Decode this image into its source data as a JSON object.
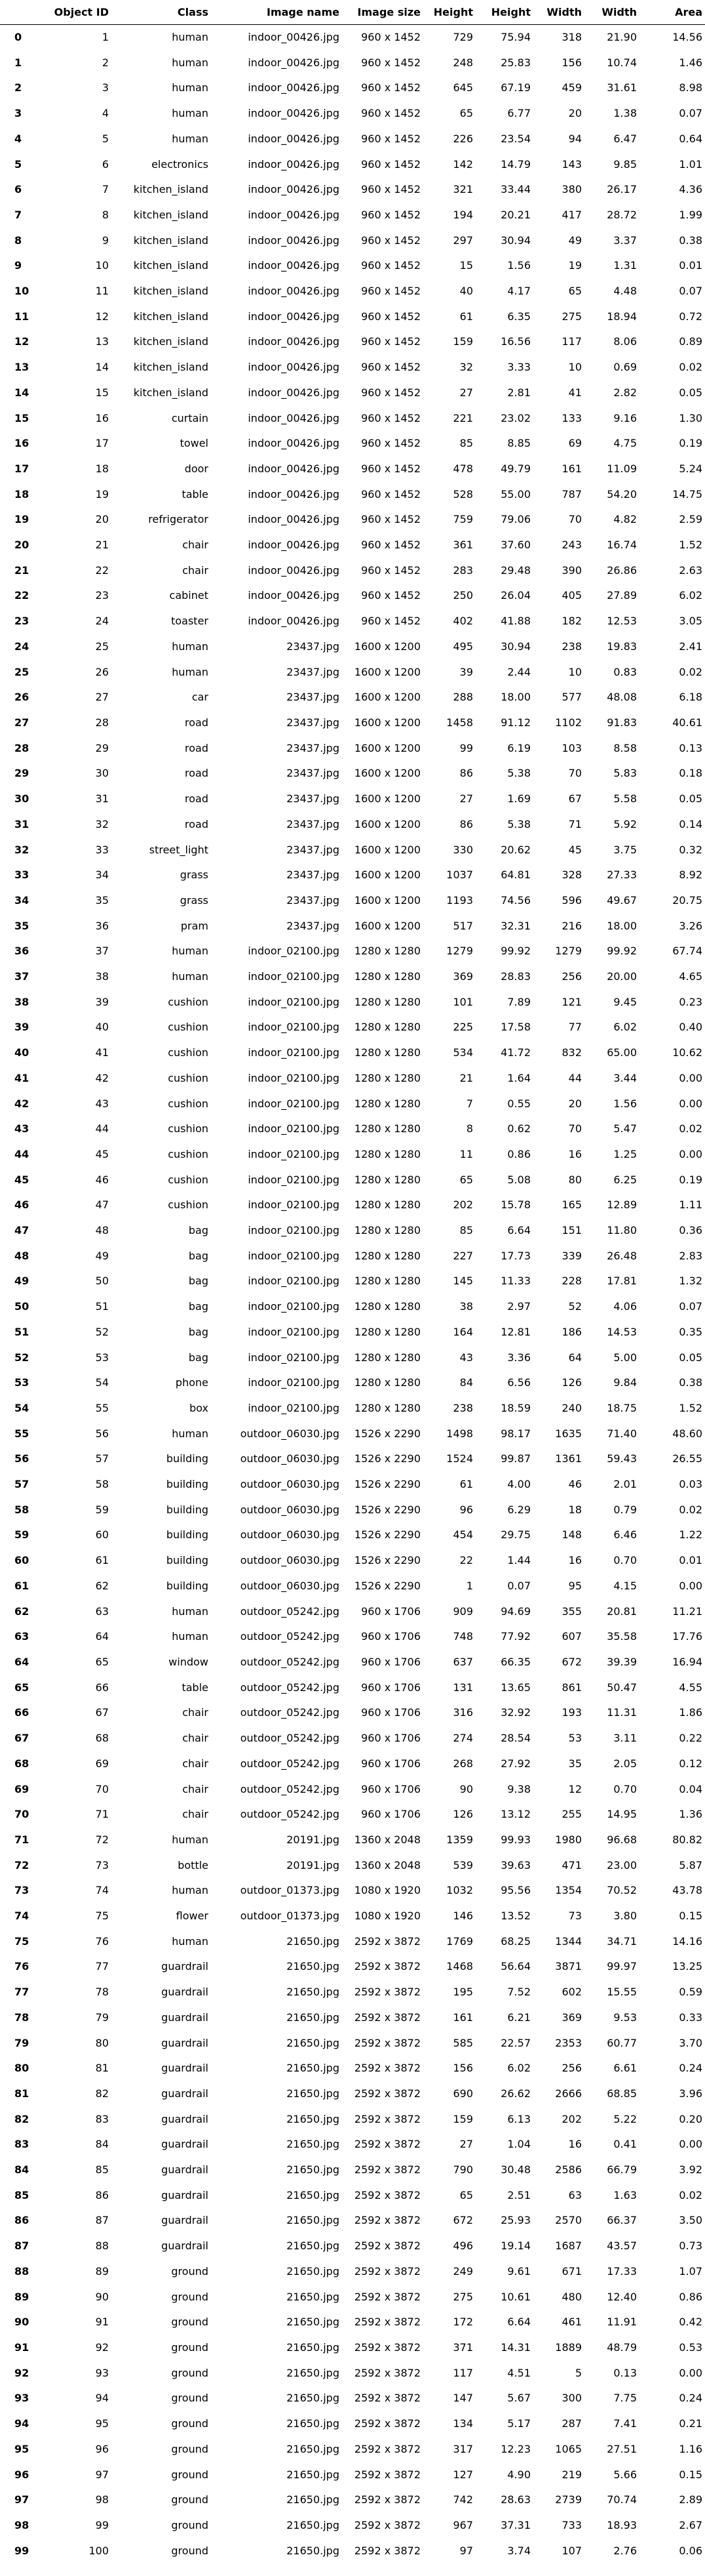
{
  "columns": [
    "",
    "Object ID",
    "Class",
    "Image name",
    "Image size",
    "Height",
    "Height",
    "Width",
    "Width",
    "Area"
  ],
  "rows": [
    [
      "0",
      "1",
      "human",
      "indoor_00426.jpg",
      "960 x 1452",
      "729",
      "75.94",
      "318",
      "21.90",
      "14.56"
    ],
    [
      "1",
      "2",
      "human",
      "indoor_00426.jpg",
      "960 x 1452",
      "248",
      "25.83",
      "156",
      "10.74",
      "1.46"
    ],
    [
      "2",
      "3",
      "human",
      "indoor_00426.jpg",
      "960 x 1452",
      "645",
      "67.19",
      "459",
      "31.61",
      "8.98"
    ],
    [
      "3",
      "4",
      "human",
      "indoor_00426.jpg",
      "960 x 1452",
      "65",
      "6.77",
      "20",
      "1.38",
      "0.07"
    ],
    [
      "4",
      "5",
      "human",
      "indoor_00426.jpg",
      "960 x 1452",
      "226",
      "23.54",
      "94",
      "6.47",
      "0.64"
    ],
    [
      "5",
      "6",
      "electronics",
      "indoor_00426.jpg",
      "960 x 1452",
      "142",
      "14.79",
      "143",
      "9.85",
      "1.01"
    ],
    [
      "6",
      "7",
      "kitchen_island",
      "indoor_00426.jpg",
      "960 x 1452",
      "321",
      "33.44",
      "380",
      "26.17",
      "4.36"
    ],
    [
      "7",
      "8",
      "kitchen_island",
      "indoor_00426.jpg",
      "960 x 1452",
      "194",
      "20.21",
      "417",
      "28.72",
      "1.99"
    ],
    [
      "8",
      "9",
      "kitchen_island",
      "indoor_00426.jpg",
      "960 x 1452",
      "297",
      "30.94",
      "49",
      "3.37",
      "0.38"
    ],
    [
      "9",
      "10",
      "kitchen_island",
      "indoor_00426.jpg",
      "960 x 1452",
      "15",
      "1.56",
      "19",
      "1.31",
      "0.01"
    ],
    [
      "10",
      "11",
      "kitchen_island",
      "indoor_00426.jpg",
      "960 x 1452",
      "40",
      "4.17",
      "65",
      "4.48",
      "0.07"
    ],
    [
      "11",
      "12",
      "kitchen_island",
      "indoor_00426.jpg",
      "960 x 1452",
      "61",
      "6.35",
      "275",
      "18.94",
      "0.72"
    ],
    [
      "12",
      "13",
      "kitchen_island",
      "indoor_00426.jpg",
      "960 x 1452",
      "159",
      "16.56",
      "117",
      "8.06",
      "0.89"
    ],
    [
      "13",
      "14",
      "kitchen_island",
      "indoor_00426.jpg",
      "960 x 1452",
      "32",
      "3.33",
      "10",
      "0.69",
      "0.02"
    ],
    [
      "14",
      "15",
      "kitchen_island",
      "indoor_00426.jpg",
      "960 x 1452",
      "27",
      "2.81",
      "41",
      "2.82",
      "0.05"
    ],
    [
      "15",
      "16",
      "curtain",
      "indoor_00426.jpg",
      "960 x 1452",
      "221",
      "23.02",
      "133",
      "9.16",
      "1.30"
    ],
    [
      "16",
      "17",
      "towel",
      "indoor_00426.jpg",
      "960 x 1452",
      "85",
      "8.85",
      "69",
      "4.75",
      "0.19"
    ],
    [
      "17",
      "18",
      "door",
      "indoor_00426.jpg",
      "960 x 1452",
      "478",
      "49.79",
      "161",
      "11.09",
      "5.24"
    ],
    [
      "18",
      "19",
      "table",
      "indoor_00426.jpg",
      "960 x 1452",
      "528",
      "55.00",
      "787",
      "54.20",
      "14.75"
    ],
    [
      "19",
      "20",
      "refrigerator",
      "indoor_00426.jpg",
      "960 x 1452",
      "759",
      "79.06",
      "70",
      "4.82",
      "2.59"
    ],
    [
      "20",
      "21",
      "chair",
      "indoor_00426.jpg",
      "960 x 1452",
      "361",
      "37.60",
      "243",
      "16.74",
      "1.52"
    ],
    [
      "21",
      "22",
      "chair",
      "indoor_00426.jpg",
      "960 x 1452",
      "283",
      "29.48",
      "390",
      "26.86",
      "2.63"
    ],
    [
      "22",
      "23",
      "cabinet",
      "indoor_00426.jpg",
      "960 x 1452",
      "250",
      "26.04",
      "405",
      "27.89",
      "6.02"
    ],
    [
      "23",
      "24",
      "toaster",
      "indoor_00426.jpg",
      "960 x 1452",
      "402",
      "41.88",
      "182",
      "12.53",
      "3.05"
    ],
    [
      "24",
      "25",
      "human",
      "23437.jpg",
      "1600 x 1200",
      "495",
      "30.94",
      "238",
      "19.83",
      "2.41"
    ],
    [
      "25",
      "26",
      "human",
      "23437.jpg",
      "1600 x 1200",
      "39",
      "2.44",
      "10",
      "0.83",
      "0.02"
    ],
    [
      "26",
      "27",
      "car",
      "23437.jpg",
      "1600 x 1200",
      "288",
      "18.00",
      "577",
      "48.08",
      "6.18"
    ],
    [
      "27",
      "28",
      "road",
      "23437.jpg",
      "1600 x 1200",
      "1458",
      "91.12",
      "1102",
      "91.83",
      "40.61"
    ],
    [
      "28",
      "29",
      "road",
      "23437.jpg",
      "1600 x 1200",
      "99",
      "6.19",
      "103",
      "8.58",
      "0.13"
    ],
    [
      "29",
      "30",
      "road",
      "23437.jpg",
      "1600 x 1200",
      "86",
      "5.38",
      "70",
      "5.83",
      "0.18"
    ],
    [
      "30",
      "31",
      "road",
      "23437.jpg",
      "1600 x 1200",
      "27",
      "1.69",
      "67",
      "5.58",
      "0.05"
    ],
    [
      "31",
      "32",
      "road",
      "23437.jpg",
      "1600 x 1200",
      "86",
      "5.38",
      "71",
      "5.92",
      "0.14"
    ],
    [
      "32",
      "33",
      "street_light",
      "23437.jpg",
      "1600 x 1200",
      "330",
      "20.62",
      "45",
      "3.75",
      "0.32"
    ],
    [
      "33",
      "34",
      "grass",
      "23437.jpg",
      "1600 x 1200",
      "1037",
      "64.81",
      "328",
      "27.33",
      "8.92"
    ],
    [
      "34",
      "35",
      "grass",
      "23437.jpg",
      "1600 x 1200",
      "1193",
      "74.56",
      "596",
      "49.67",
      "20.75"
    ],
    [
      "35",
      "36",
      "pram",
      "23437.jpg",
      "1600 x 1200",
      "517",
      "32.31",
      "216",
      "18.00",
      "3.26"
    ],
    [
      "36",
      "37",
      "human",
      "indoor_02100.jpg",
      "1280 x 1280",
      "1279",
      "99.92",
      "1279",
      "99.92",
      "67.74"
    ],
    [
      "37",
      "38",
      "human",
      "indoor_02100.jpg",
      "1280 x 1280",
      "369",
      "28.83",
      "256",
      "20.00",
      "4.65"
    ],
    [
      "38",
      "39",
      "cushion",
      "indoor_02100.jpg",
      "1280 x 1280",
      "101",
      "7.89",
      "121",
      "9.45",
      "0.23"
    ],
    [
      "39",
      "40",
      "cushion",
      "indoor_02100.jpg",
      "1280 x 1280",
      "225",
      "17.58",
      "77",
      "6.02",
      "0.40"
    ],
    [
      "40",
      "41",
      "cushion",
      "indoor_02100.jpg",
      "1280 x 1280",
      "534",
      "41.72",
      "832",
      "65.00",
      "10.62"
    ],
    [
      "41",
      "42",
      "cushion",
      "indoor_02100.jpg",
      "1280 x 1280",
      "21",
      "1.64",
      "44",
      "3.44",
      "0.00"
    ],
    [
      "42",
      "43",
      "cushion",
      "indoor_02100.jpg",
      "1280 x 1280",
      "7",
      "0.55",
      "20",
      "1.56",
      "0.00"
    ],
    [
      "43",
      "44",
      "cushion",
      "indoor_02100.jpg",
      "1280 x 1280",
      "8",
      "0.62",
      "70",
      "5.47",
      "0.02"
    ],
    [
      "44",
      "45",
      "cushion",
      "indoor_02100.jpg",
      "1280 x 1280",
      "11",
      "0.86",
      "16",
      "1.25",
      "0.00"
    ],
    [
      "45",
      "46",
      "cushion",
      "indoor_02100.jpg",
      "1280 x 1280",
      "65",
      "5.08",
      "80",
      "6.25",
      "0.19"
    ],
    [
      "46",
      "47",
      "cushion",
      "indoor_02100.jpg",
      "1280 x 1280",
      "202",
      "15.78",
      "165",
      "12.89",
      "1.11"
    ],
    [
      "47",
      "48",
      "bag",
      "indoor_02100.jpg",
      "1280 x 1280",
      "85",
      "6.64",
      "151",
      "11.80",
      "0.36"
    ],
    [
      "48",
      "49",
      "bag",
      "indoor_02100.jpg",
      "1280 x 1280",
      "227",
      "17.73",
      "339",
      "26.48",
      "2.83"
    ],
    [
      "49",
      "50",
      "bag",
      "indoor_02100.jpg",
      "1280 x 1280",
      "145",
      "11.33",
      "228",
      "17.81",
      "1.32"
    ],
    [
      "50",
      "51",
      "bag",
      "indoor_02100.jpg",
      "1280 x 1280",
      "38",
      "2.97",
      "52",
      "4.06",
      "0.07"
    ],
    [
      "51",
      "52",
      "bag",
      "indoor_02100.jpg",
      "1280 x 1280",
      "164",
      "12.81",
      "186",
      "14.53",
      "0.35"
    ],
    [
      "52",
      "53",
      "bag",
      "indoor_02100.jpg",
      "1280 x 1280",
      "43",
      "3.36",
      "64",
      "5.00",
      "0.05"
    ],
    [
      "53",
      "54",
      "phone",
      "indoor_02100.jpg",
      "1280 x 1280",
      "84",
      "6.56",
      "126",
      "9.84",
      "0.38"
    ],
    [
      "54",
      "55",
      "box",
      "indoor_02100.jpg",
      "1280 x 1280",
      "238",
      "18.59",
      "240",
      "18.75",
      "1.52"
    ],
    [
      "55",
      "56",
      "human",
      "outdoor_06030.jpg",
      "1526 x 2290",
      "1498",
      "98.17",
      "1635",
      "71.40",
      "48.60"
    ],
    [
      "56",
      "57",
      "building",
      "outdoor_06030.jpg",
      "1526 x 2290",
      "1524",
      "99.87",
      "1361",
      "59.43",
      "26.55"
    ],
    [
      "57",
      "58",
      "building",
      "outdoor_06030.jpg",
      "1526 x 2290",
      "61",
      "4.00",
      "46",
      "2.01",
      "0.03"
    ],
    [
      "58",
      "59",
      "building",
      "outdoor_06030.jpg",
      "1526 x 2290",
      "96",
      "6.29",
      "18",
      "0.79",
      "0.02"
    ],
    [
      "59",
      "60",
      "building",
      "outdoor_06030.jpg",
      "1526 x 2290",
      "454",
      "29.75",
      "148",
      "6.46",
      "1.22"
    ],
    [
      "60",
      "61",
      "building",
      "outdoor_06030.jpg",
      "1526 x 2290",
      "22",
      "1.44",
      "16",
      "0.70",
      "0.01"
    ],
    [
      "61",
      "62",
      "building",
      "outdoor_06030.jpg",
      "1526 x 2290",
      "1",
      "0.07",
      "95",
      "4.15",
      "0.00"
    ],
    [
      "62",
      "63",
      "human",
      "outdoor_05242.jpg",
      "960 x 1706",
      "909",
      "94.69",
      "355",
      "20.81",
      "11.21"
    ],
    [
      "63",
      "64",
      "human",
      "outdoor_05242.jpg",
      "960 x 1706",
      "748",
      "77.92",
      "607",
      "35.58",
      "17.76"
    ],
    [
      "64",
      "65",
      "window",
      "outdoor_05242.jpg",
      "960 x 1706",
      "637",
      "66.35",
      "672",
      "39.39",
      "16.94"
    ],
    [
      "65",
      "66",
      "table",
      "outdoor_05242.jpg",
      "960 x 1706",
      "131",
      "13.65",
      "861",
      "50.47",
      "4.55"
    ],
    [
      "66",
      "67",
      "chair",
      "outdoor_05242.jpg",
      "960 x 1706",
      "316",
      "32.92",
      "193",
      "11.31",
      "1.86"
    ],
    [
      "67",
      "68",
      "chair",
      "outdoor_05242.jpg",
      "960 x 1706",
      "274",
      "28.54",
      "53",
      "3.11",
      "0.22"
    ],
    [
      "68",
      "69",
      "chair",
      "outdoor_05242.jpg",
      "960 x 1706",
      "268",
      "27.92",
      "35",
      "2.05",
      "0.12"
    ],
    [
      "69",
      "70",
      "chair",
      "outdoor_05242.jpg",
      "960 x 1706",
      "90",
      "9.38",
      "12",
      "0.70",
      "0.04"
    ],
    [
      "70",
      "71",
      "chair",
      "outdoor_05242.jpg",
      "960 x 1706",
      "126",
      "13.12",
      "255",
      "14.95",
      "1.36"
    ],
    [
      "71",
      "72",
      "human",
      "20191.jpg",
      "1360 x 2048",
      "1359",
      "99.93",
      "1980",
      "96.68",
      "80.82"
    ],
    [
      "72",
      "73",
      "bottle",
      "20191.jpg",
      "1360 x 2048",
      "539",
      "39.63",
      "471",
      "23.00",
      "5.87"
    ],
    [
      "73",
      "74",
      "human",
      "outdoor_01373.jpg",
      "1080 x 1920",
      "1032",
      "95.56",
      "1354",
      "70.52",
      "43.78"
    ],
    [
      "74",
      "75",
      "flower",
      "outdoor_01373.jpg",
      "1080 x 1920",
      "146",
      "13.52",
      "73",
      "3.80",
      "0.15"
    ],
    [
      "75",
      "76",
      "human",
      "21650.jpg",
      "2592 x 3872",
      "1769",
      "68.25",
      "1344",
      "34.71",
      "14.16"
    ],
    [
      "76",
      "77",
      "guardrail",
      "21650.jpg",
      "2592 x 3872",
      "1468",
      "56.64",
      "3871",
      "99.97",
      "13.25"
    ],
    [
      "77",
      "78",
      "guardrail",
      "21650.jpg",
      "2592 x 3872",
      "195",
      "7.52",
      "602",
      "15.55",
      "0.59"
    ],
    [
      "78",
      "79",
      "guardrail",
      "21650.jpg",
      "2592 x 3872",
      "161",
      "6.21",
      "369",
      "9.53",
      "0.33"
    ],
    [
      "79",
      "80",
      "guardrail",
      "21650.jpg",
      "2592 x 3872",
      "585",
      "22.57",
      "2353",
      "60.77",
      "3.70"
    ],
    [
      "80",
      "81",
      "guardrail",
      "21650.jpg",
      "2592 x 3872",
      "156",
      "6.02",
      "256",
      "6.61",
      "0.24"
    ],
    [
      "81",
      "82",
      "guardrail",
      "21650.jpg",
      "2592 x 3872",
      "690",
      "26.62",
      "2666",
      "68.85",
      "3.96"
    ],
    [
      "82",
      "83",
      "guardrail",
      "21650.jpg",
      "2592 x 3872",
      "159",
      "6.13",
      "202",
      "5.22",
      "0.20"
    ],
    [
      "83",
      "84",
      "guardrail",
      "21650.jpg",
      "2592 x 3872",
      "27",
      "1.04",
      "16",
      "0.41",
      "0.00"
    ],
    [
      "84",
      "85",
      "guardrail",
      "21650.jpg",
      "2592 x 3872",
      "790",
      "30.48",
      "2586",
      "66.79",
      "3.92"
    ],
    [
      "85",
      "86",
      "guardrail",
      "21650.jpg",
      "2592 x 3872",
      "65",
      "2.51",
      "63",
      "1.63",
      "0.02"
    ],
    [
      "86",
      "87",
      "guardrail",
      "21650.jpg",
      "2592 x 3872",
      "672",
      "25.93",
      "2570",
      "66.37",
      "3.50"
    ],
    [
      "87",
      "88",
      "guardrail",
      "21650.jpg",
      "2592 x 3872",
      "496",
      "19.14",
      "1687",
      "43.57",
      "0.73"
    ],
    [
      "88",
      "89",
      "ground",
      "21650.jpg",
      "2592 x 3872",
      "249",
      "9.61",
      "671",
      "17.33",
      "1.07"
    ],
    [
      "89",
      "90",
      "ground",
      "21650.jpg",
      "2592 x 3872",
      "275",
      "10.61",
      "480",
      "12.40",
      "0.86"
    ],
    [
      "90",
      "91",
      "ground",
      "21650.jpg",
      "2592 x 3872",
      "172",
      "6.64",
      "461",
      "11.91",
      "0.42"
    ],
    [
      "91",
      "92",
      "ground",
      "21650.jpg",
      "2592 x 3872",
      "371",
      "14.31",
      "1889",
      "48.79",
      "0.53"
    ],
    [
      "92",
      "93",
      "ground",
      "21650.jpg",
      "2592 x 3872",
      "117",
      "4.51",
      "5",
      "0.13",
      "0.00"
    ],
    [
      "93",
      "94",
      "ground",
      "21650.jpg",
      "2592 x 3872",
      "147",
      "5.67",
      "300",
      "7.75",
      "0.24"
    ],
    [
      "94",
      "95",
      "ground",
      "21650.jpg",
      "2592 x 3872",
      "134",
      "5.17",
      "287",
      "7.41",
      "0.21"
    ],
    [
      "95",
      "96",
      "ground",
      "21650.jpg",
      "2592 x 3872",
      "317",
      "12.23",
      "1065",
      "27.51",
      "1.16"
    ],
    [
      "96",
      "97",
      "ground",
      "21650.jpg",
      "2592 x 3872",
      "127",
      "4.90",
      "219",
      "5.66",
      "0.15"
    ],
    [
      "97",
      "98",
      "ground",
      "21650.jpg",
      "2592 x 3872",
      "742",
      "28.63",
      "2739",
      "70.74",
      "2.89"
    ],
    [
      "98",
      "99",
      "ground",
      "21650.jpg",
      "2592 x 3872",
      "967",
      "37.31",
      "733",
      "18.93",
      "2.67"
    ],
    [
      "99",
      "100",
      "ground",
      "21650.jpg",
      "2592 x 3872",
      "97",
      "3.74",
      "107",
      "2.76",
      "0.06"
    ]
  ]
}
